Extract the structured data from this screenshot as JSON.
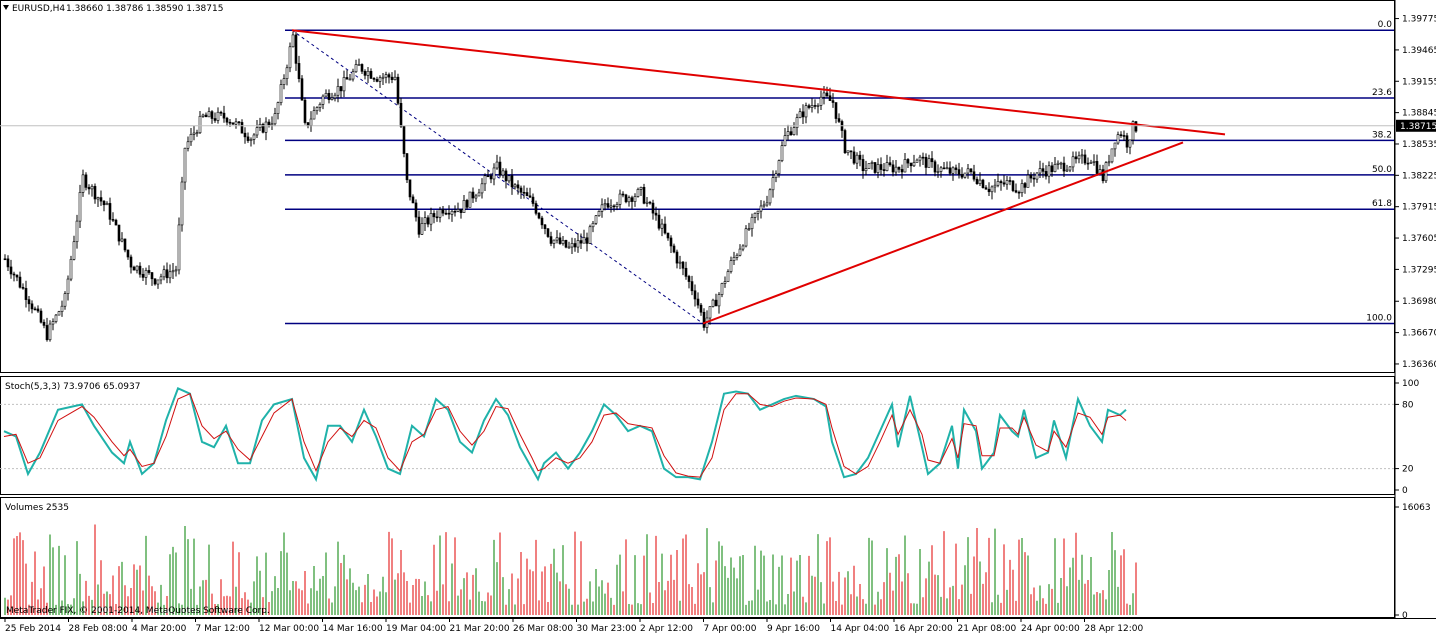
{
  "header": {
    "symbol": "EURUSD,H4",
    "quote": "1.38660 1.38786 1.38590 1.38715"
  },
  "stoch_header": "Stoch(5,3,3) 73.9706 65.0937",
  "volume_header": "Volumes 2535",
  "copyright": "MetaTrader FIX, © 2001-2014, MetaQuotes Software Corp.",
  "colors": {
    "candles": "#000000",
    "trendline": "#e00000",
    "fib": "#000080",
    "stoch_main": "#20b2aa",
    "stoch_signal": "#d01010",
    "vol_up": "#008000",
    "vol_down": "#e00000",
    "grid": "#c0c0c0"
  },
  "chart_data": [
    {
      "type": "candlestick",
      "title": "EURUSD,H4",
      "y_ticks": [
        "1.39775",
        "1.39465",
        "1.39155",
        "1.38845",
        "1.38535",
        "1.38225",
        "1.37915",
        "1.37605",
        "1.37295",
        "1.36980",
        "1.36670",
        "1.36360"
      ],
      "ylim": [
        1.3632,
        1.3983
      ],
      "current_price": "1.38715",
      "x_ticks": [
        "25 Feb 2014",
        "28 Feb 08:00",
        "4 Mar 20:00",
        "7 Mar 12:00",
        "12 Mar 00:00",
        "14 Mar 16:00",
        "19 Mar 04:00",
        "21 Mar 20:00",
        "26 Mar 08:00",
        "30 Mar 23:00",
        "2 Apr 12:00",
        "7 Apr 00:00",
        "9 Apr 16:00",
        "14 Apr 04:00",
        "16 Apr 20:00",
        "21 Apr 08:00",
        "24 Apr 00:00",
        "28 Apr 12:00"
      ],
      "fibonacci": [
        {
          "level": "0.0",
          "price": 1.3966
        },
        {
          "level": "23.6",
          "price": 1.3899
        },
        {
          "level": "38.2",
          "price": 1.3857
        },
        {
          "level": "50.0",
          "price": 1.3823
        },
        {
          "level": "61.8",
          "price": 1.3789
        },
        {
          "level": "100.0",
          "price": 1.3676
        }
      ],
      "trendlines": [
        {
          "name": "resistance",
          "from": {
            "bar": 96,
            "price": 1.3966
          },
          "to": {
            "bar": 407,
            "price": 1.3863
          }
        },
        {
          "name": "support",
          "from": {
            "bar": 233,
            "price": 1.3676
          },
          "to": {
            "bar": 393,
            "price": 1.3855
          }
        }
      ],
      "anchors": [
        [
          0,
          1.374
        ],
        [
          8,
          1.37
        ],
        [
          14,
          1.3665
        ],
        [
          20,
          1.37
        ],
        [
          26,
          1.382
        ],
        [
          34,
          1.379
        ],
        [
          42,
          1.3735
        ],
        [
          50,
          1.372
        ],
        [
          57,
          1.373
        ],
        [
          60,
          1.385
        ],
        [
          66,
          1.388
        ],
        [
          74,
          1.388
        ],
        [
          82,
          1.386
        ],
        [
          90,
          1.388
        ],
        [
          96,
          1.396
        ],
        [
          100,
          1.387
        ],
        [
          106,
          1.39
        ],
        [
          112,
          1.391
        ],
        [
          118,
          1.393
        ],
        [
          124,
          1.392
        ],
        [
          130,
          1.392
        ],
        [
          134,
          1.3815
        ],
        [
          138,
          1.377
        ],
        [
          146,
          1.379
        ],
        [
          152,
          1.379
        ],
        [
          158,
          1.381
        ],
        [
          164,
          1.383
        ],
        [
          170,
          1.381
        ],
        [
          176,
          1.3795
        ],
        [
          182,
          1.376
        ],
        [
          188,
          1.375
        ],
        [
          194,
          1.376
        ],
        [
          200,
          1.3795
        ],
        [
          206,
          1.38
        ],
        [
          212,
          1.3805
        ],
        [
          218,
          1.3775
        ],
        [
          224,
          1.374
        ],
        [
          230,
          1.3705
        ],
        [
          233,
          1.3676
        ],
        [
          238,
          1.3705
        ],
        [
          242,
          1.3735
        ],
        [
          248,
          1.377
        ],
        [
          254,
          1.38
        ],
        [
          260,
          1.386
        ],
        [
          266,
          1.3885
        ],
        [
          272,
          1.39
        ],
        [
          276,
          1.3895
        ],
        [
          280,
          1.385
        ],
        [
          286,
          1.383
        ],
        [
          292,
          1.383
        ],
        [
          298,
          1.383
        ],
        [
          304,
          1.384
        ],
        [
          310,
          1.383
        ],
        [
          316,
          1.3825
        ],
        [
          322,
          1.3825
        ],
        [
          328,
          1.381
        ],
        [
          334,
          1.3815
        ],
        [
          338,
          1.381
        ],
        [
          344,
          1.3825
        ],
        [
          350,
          1.383
        ],
        [
          356,
          1.3835
        ],
        [
          362,
          1.384
        ],
        [
          366,
          1.382
        ],
        [
          370,
          1.386
        ],
        [
          372,
          1.3865
        ],
        [
          374,
          1.3855
        ],
        [
          376,
          1.387
        ]
      ]
    },
    {
      "type": "line",
      "title": "Stoch(5,3,3)",
      "ylim": [
        0,
        100
      ],
      "y_ticks": [
        "100",
        "80",
        "20",
        "0"
      ],
      "series": [
        {
          "name": "Main",
          "values": [
            [
              0,
              55
            ],
            [
              4,
              50
            ],
            [
              8,
              15
            ],
            [
              12,
              35
            ],
            [
              18,
              75
            ],
            [
              26,
              80
            ],
            [
              30,
              60
            ],
            [
              36,
              35
            ],
            [
              40,
              25
            ],
            [
              42,
              45
            ],
            [
              46,
              15
            ],
            [
              50,
              25
            ],
            [
              54,
              65
            ],
            [
              58,
              95
            ],
            [
              62,
              90
            ],
            [
              66,
              45
            ],
            [
              70,
              40
            ],
            [
              74,
              60
            ],
            [
              78,
              25
            ],
            [
              82,
              25
            ],
            [
              86,
              65
            ],
            [
              90,
              80
            ],
            [
              96,
              85
            ],
            [
              100,
              30
            ],
            [
              104,
              10
            ],
            [
              108,
              60
            ],
            [
              112,
              60
            ],
            [
              116,
              45
            ],
            [
              120,
              75
            ],
            [
              124,
              50
            ],
            [
              128,
              20
            ],
            [
              132,
              15
            ],
            [
              136,
              60
            ],
            [
              140,
              50
            ],
            [
              144,
              85
            ],
            [
              148,
              75
            ],
            [
              152,
              45
            ],
            [
              156,
              35
            ],
            [
              160,
              65
            ],
            [
              164,
              85
            ],
            [
              168,
              70
            ],
            [
              172,
              40
            ],
            [
              176,
              20
            ],
            [
              178,
              10
            ],
            [
              180,
              25
            ],
            [
              184,
              35
            ],
            [
              188,
              20
            ],
            [
              192,
              35
            ],
            [
              196,
              55
            ],
            [
              200,
              80
            ],
            [
              204,
              70
            ],
            [
              208,
              55
            ],
            [
              212,
              60
            ],
            [
              216,
              55
            ],
            [
              220,
              20
            ],
            [
              224,
              12
            ],
            [
              228,
              12
            ],
            [
              232,
              10
            ],
            [
              236,
              45
            ],
            [
              240,
              90
            ],
            [
              244,
              92
            ],
            [
              248,
              90
            ],
            [
              252,
              75
            ],
            [
              256,
              80
            ],
            [
              260,
              85
            ],
            [
              264,
              88
            ],
            [
              270,
              85
            ],
            [
              274,
              78
            ],
            [
              276,
              45
            ],
            [
              280,
              12
            ],
            [
              284,
              15
            ],
            [
              288,
              30
            ],
            [
              292,
              55
            ],
            [
              296,
              80
            ],
            [
              298,
              40
            ],
            [
              302,
              88
            ],
            [
              306,
              40
            ],
            [
              308,
              15
            ],
            [
              312,
              25
            ],
            [
              316,
              60
            ],
            [
              318,
              20
            ],
            [
              320,
              75
            ],
            [
              324,
              55
            ],
            [
              326,
              20
            ],
            [
              330,
              35
            ],
            [
              332,
              70
            ],
            [
              336,
              55
            ],
            [
              338,
              50
            ],
            [
              340,
              75
            ],
            [
              344,
              30
            ],
            [
              348,
              35
            ],
            [
              350,
              65
            ],
            [
              354,
              30
            ],
            [
              358,
              85
            ],
            [
              362,
              60
            ],
            [
              366,
              45
            ],
            [
              368,
              75
            ],
            [
              372,
              70
            ],
            [
              374,
              75
            ]
          ]
        },
        {
          "name": "Signal",
          "values": [
            [
              0,
              50
            ],
            [
              4,
              52
            ],
            [
              8,
              25
            ],
            [
              12,
              30
            ],
            [
              18,
              65
            ],
            [
              26,
              78
            ],
            [
              30,
              68
            ],
            [
              36,
              45
            ],
            [
              40,
              32
            ],
            [
              42,
              38
            ],
            [
              46,
              22
            ],
            [
              50,
              25
            ],
            [
              54,
              50
            ],
            [
              58,
              85
            ],
            [
              62,
              90
            ],
            [
              66,
              60
            ],
            [
              70,
              48
            ],
            [
              74,
              55
            ],
            [
              78,
              38
            ],
            [
              82,
              28
            ],
            [
              86,
              50
            ],
            [
              90,
              72
            ],
            [
              96,
              85
            ],
            [
              100,
              45
            ],
            [
              104,
              18
            ],
            [
              108,
              45
            ],
            [
              112,
              58
            ],
            [
              116,
              50
            ],
            [
              120,
              65
            ],
            [
              124,
              58
            ],
            [
              128,
              30
            ],
            [
              132,
              18
            ],
            [
              136,
              45
            ],
            [
              140,
              52
            ],
            [
              144,
              75
            ],
            [
              148,
              78
            ],
            [
              152,
              55
            ],
            [
              156,
              42
            ],
            [
              160,
              55
            ],
            [
              164,
              78
            ],
            [
              168,
              76
            ],
            [
              172,
              52
            ],
            [
              176,
              30
            ],
            [
              178,
              18
            ],
            [
              180,
              20
            ],
            [
              184,
              30
            ],
            [
              188,
              25
            ],
            [
              192,
              30
            ],
            [
              196,
              45
            ],
            [
              200,
              70
            ],
            [
              204,
              72
            ],
            [
              208,
              62
            ],
            [
              212,
              60
            ],
            [
              216,
              58
            ],
            [
              220,
              32
            ],
            [
              224,
              16
            ],
            [
              228,
              13
            ],
            [
              232,
              12
            ],
            [
              236,
              30
            ],
            [
              240,
              75
            ],
            [
              244,
              90
            ],
            [
              248,
              90
            ],
            [
              252,
              80
            ],
            [
              256,
              78
            ],
            [
              260,
              83
            ],
            [
              264,
              86
            ],
            [
              270,
              85
            ],
            [
              274,
              80
            ],
            [
              276,
              58
            ],
            [
              280,
              22
            ],
            [
              284,
              15
            ],
            [
              288,
              22
            ],
            [
              292,
              45
            ],
            [
              296,
              70
            ],
            [
              298,
              52
            ],
            [
              302,
              75
            ],
            [
              306,
              52
            ],
            [
              308,
              28
            ],
            [
              312,
              25
            ],
            [
              316,
              48
            ],
            [
              318,
              30
            ],
            [
              320,
              62
            ],
            [
              324,
              60
            ],
            [
              326,
              32
            ],
            [
              330,
              32
            ],
            [
              332,
              58
            ],
            [
              336,
              58
            ],
            [
              338,
              52
            ],
            [
              340,
              68
            ],
            [
              344,
              42
            ],
            [
              348,
              36
            ],
            [
              350,
              55
            ],
            [
              354,
              40
            ],
            [
              358,
              72
            ],
            [
              362,
              68
            ],
            [
              366,
              52
            ],
            [
              368,
              68
            ],
            [
              372,
              70
            ],
            [
              374,
              65
            ]
          ]
        }
      ]
    },
    {
      "type": "bar",
      "title": "Volumes 2535",
      "ylim": [
        0,
        16063
      ],
      "y_ticks": [
        "16063",
        "0"
      ]
    }
  ]
}
